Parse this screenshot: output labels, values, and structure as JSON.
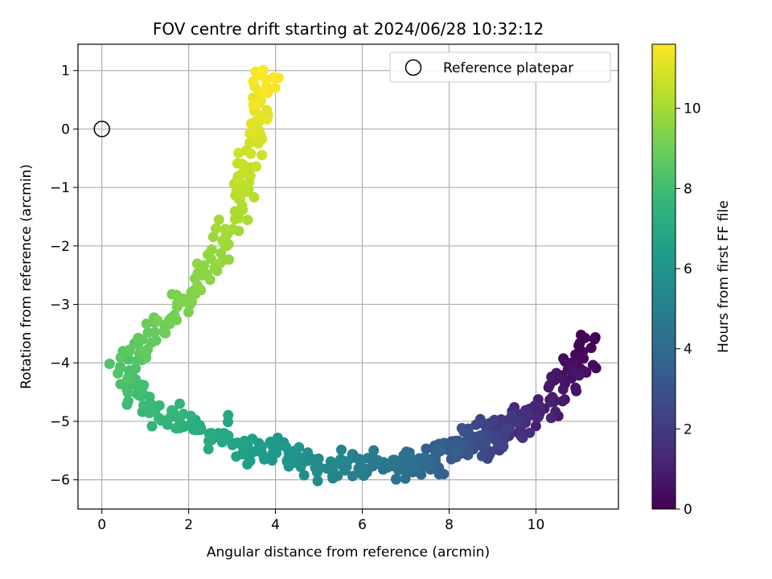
{
  "chart_data": {
    "type": "scatter",
    "title": "FOV centre drift starting at 2024/06/28 10:32:12",
    "xlabel": "Angular distance from reference (arcmin)",
    "ylabel": "Rotation from reference (arcmin)",
    "xlim": [
      -0.55,
      11.9
    ],
    "ylim": [
      -6.5,
      1.45
    ],
    "xticks": [
      0,
      2,
      4,
      6,
      8,
      10
    ],
    "yticks": [
      1,
      0,
      -1,
      -2,
      -3,
      -4,
      -5,
      -6
    ],
    "grid": true,
    "legend": {
      "position": "top-right",
      "entries": [
        "Reference platepar"
      ]
    },
    "reference_point": {
      "x": 0,
      "y": 0,
      "name": "Reference platepar"
    },
    "colorbar": {
      "label": "Hours from first FF file",
      "colormap": "viridis",
      "range": [
        0,
        11.6
      ],
      "ticks": [
        0,
        2,
        4,
        6,
        8,
        10
      ]
    },
    "colormap_stops": [
      "#440154",
      "#482878",
      "#3e4989",
      "#31688e",
      "#26828e",
      "#1f9e89",
      "#35b779",
      "#6ece58",
      "#b5de2b",
      "#fde725"
    ],
    "trajectory": {
      "hours": [
        0.0,
        0.3,
        0.7,
        1.0,
        1.4,
        1.8,
        2.2,
        2.6,
        3.0,
        3.4,
        3.8,
        4.2,
        4.6,
        5.0,
        5.4,
        5.8,
        6.2,
        6.6,
        7.0,
        7.4,
        7.8,
        8.2,
        8.6,
        9.0,
        9.4,
        9.8,
        10.2,
        10.6,
        11.0,
        11.3,
        11.6
      ],
      "x": [
        11.2,
        10.9,
        10.6,
        10.2,
        9.7,
        9.4,
        9.1,
        8.7,
        8.3,
        7.9,
        7.5,
        7.0,
        6.5,
        5.9,
        5.3,
        4.6,
        3.9,
        3.2,
        2.5,
        1.8,
        1.1,
        0.55,
        0.75,
        1.4,
        2.1,
        2.7,
        3.1,
        3.4,
        3.6,
        3.7,
        3.7
      ],
      "y": [
        -3.6,
        -4.0,
        -4.4,
        -4.9,
        -5.0,
        -5.15,
        -5.25,
        -5.35,
        -5.45,
        -5.55,
        -5.65,
        -5.75,
        -5.8,
        -5.8,
        -5.75,
        -5.65,
        -5.55,
        -5.4,
        -5.2,
        -5.0,
        -4.75,
        -4.2,
        -3.8,
        -3.4,
        -2.7,
        -2.0,
        -1.3,
        -0.6,
        0.0,
        0.5,
        0.95
      ]
    },
    "note_points": "Scatter points are generated from the trajectory with deterministic jitter by the drawing script."
  }
}
